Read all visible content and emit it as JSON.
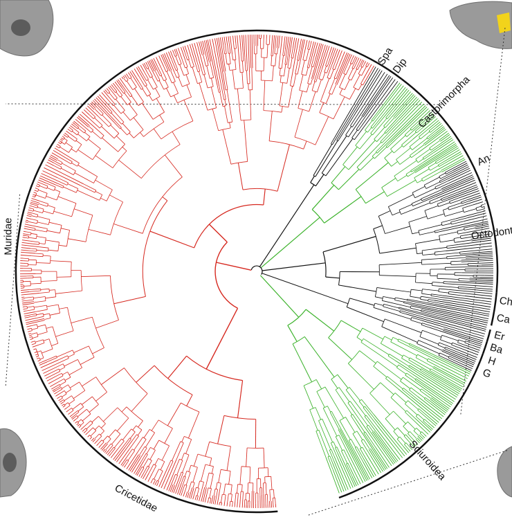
{
  "figure": {
    "colors": {
      "red": "#d6281f",
      "green": "#3bb22a",
      "black": "#111111",
      "orange": "#e07a10",
      "blue": "#2a3aa8"
    },
    "clades": [
      {
        "key": "muridae",
        "label": "Muridae",
        "color": "red",
        "start": 185,
        "end": 300
      },
      {
        "key": "cricetidae",
        "label": "Cricetidae",
        "color": "red",
        "start": 85,
        "end": 185
      },
      {
        "key": "spa",
        "label": "Spa",
        "color": "black",
        "start": 300,
        "end": 303
      },
      {
        "key": "dip",
        "label": "Dip",
        "color": "black",
        "start": 303,
        "end": 307
      },
      {
        "key": "castorimorpha",
        "label": "Castorimorpha",
        "color": "green",
        "start": 307,
        "end": 332
      },
      {
        "key": "an",
        "label": "An",
        "color": "black",
        "start": 332,
        "end": 337
      },
      {
        "key": "octodontoidea",
        "label": "Octodontoidea",
        "color": "black",
        "start": 337,
        "end": 365
      },
      {
        "key": "ch",
        "label": "Ch",
        "color": "black",
        "start": 365,
        "end": 369
      },
      {
        "key": "ca",
        "label": "Ca",
        "color": "black",
        "start": 369,
        "end": 373
      },
      {
        "key": "er",
        "label": "Er",
        "color": "black",
        "start": 374,
        "end": 377
      },
      {
        "key": "ba",
        "label": "Ba",
        "color": "blue",
        "start": 377,
        "end": 380
      },
      {
        "key": "h",
        "label": "H",
        "color": "black",
        "start": 380,
        "end": 382
      },
      {
        "key": "g",
        "label": "G",
        "color": "red",
        "start": 382,
        "end": 385
      },
      {
        "key": "sciuroidea",
        "label": "Sciuroidea",
        "color": "green",
        "start": 385,
        "end": 430
      }
    ],
    "skulls": [
      {
        "name": "skull-top-left"
      },
      {
        "name": "skull-top-right"
      },
      {
        "name": "skull-bottom-left"
      },
      {
        "name": "skull-bottom-right"
      }
    ]
  }
}
